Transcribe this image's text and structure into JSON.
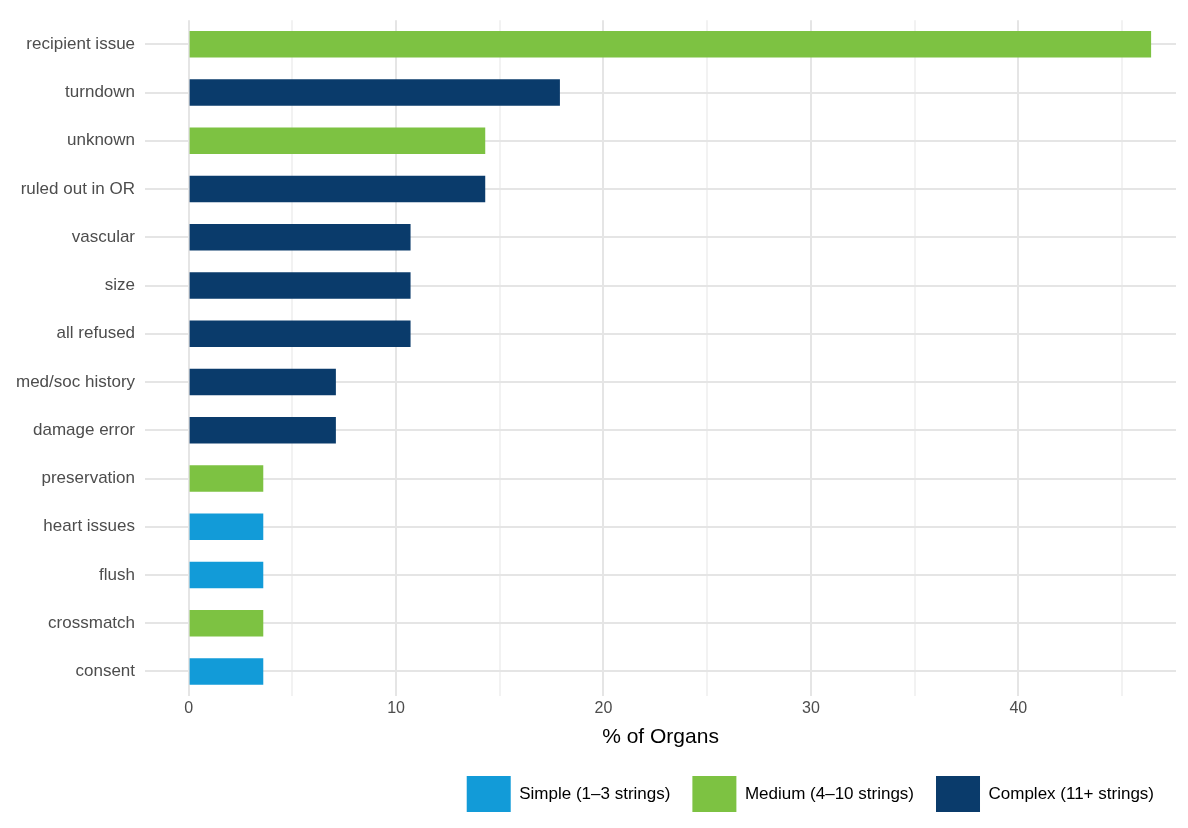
{
  "chart_data": {
    "type": "bar",
    "orientation": "horizontal",
    "stacked": true,
    "xlabel": "% of Organs",
    "categories": [
      "recipient issue",
      "turndown",
      "unknown",
      "ruled out in OR",
      "vascular",
      "size",
      "all refused",
      "med/soc history",
      "damage error",
      "preservation",
      "heart issues",
      "flush",
      "crossmatch",
      "consent"
    ],
    "series": [
      {
        "name": "Simple (1–3 strings)",
        "color": "#129bd8",
        "values": [
          null,
          null,
          null,
          null,
          null,
          null,
          null,
          null,
          null,
          null,
          3.6,
          3.6,
          null,
          3.6
        ]
      },
      {
        "name": "Medium (4–10 strings)",
        "color": "#7dc242",
        "values": [
          46.4,
          null,
          14.3,
          null,
          null,
          null,
          null,
          null,
          null,
          3.6,
          null,
          null,
          3.6,
          null
        ]
      },
      {
        "name": "Complex (11+ strings)",
        "color": "#0a3b6b",
        "values": [
          null,
          17.9,
          null,
          14.3,
          10.7,
          10.7,
          10.7,
          7.1,
          7.1,
          null,
          null,
          null,
          null,
          null
        ]
      }
    ],
    "xlim": [
      -2.1,
      47.6
    ],
    "xticks": [
      0,
      {
        "value": 5,
        "label": null
      },
      10,
      {
        "value": 15,
        "label": null
      },
      20,
      {
        "value": 25,
        "label": null
      },
      30,
      {
        "value": 35,
        "label": null
      },
      40,
      {
        "value": 45,
        "label": null
      }
    ],
    "grid": true,
    "legend": "bottom"
  }
}
